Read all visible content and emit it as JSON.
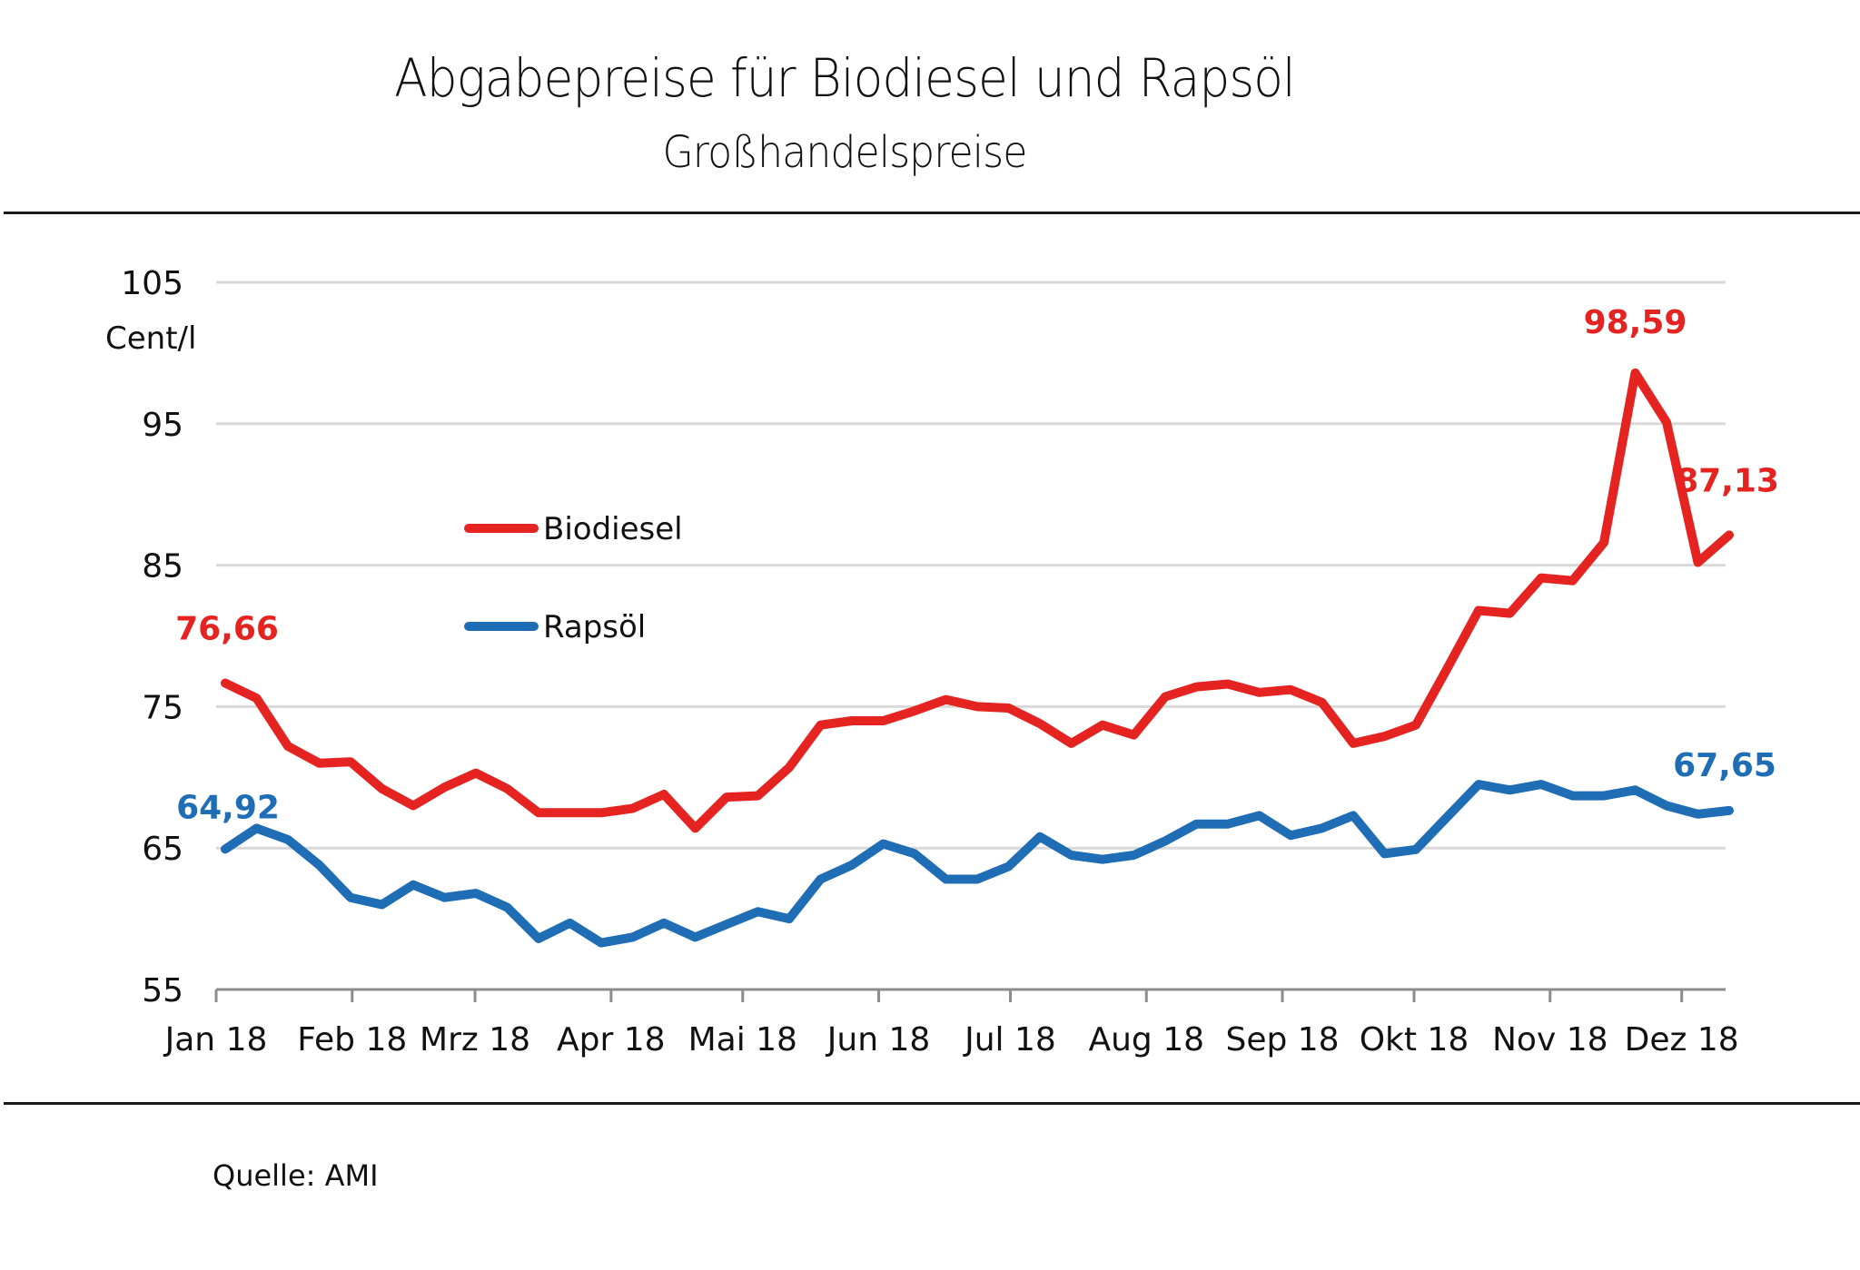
{
  "header": {
    "title": "Abgabepreise für Biodiesel und Rapsöl",
    "subtitle": "Großhandelspreise"
  },
  "footer": {
    "source": "Quelle: AMI"
  },
  "chart_data": {
    "type": "line",
    "title": "Abgabepreise für Biodiesel und Rapsöl",
    "subtitle": "Großhandelspreise",
    "xlabel": "",
    "ylabel": "Cent/l",
    "ylim": [
      55,
      105
    ],
    "yticks": [
      55,
      65,
      75,
      85,
      95,
      105
    ],
    "grid": true,
    "legend_position": "upper-left-center",
    "x_tick_labels": [
      "Jan 18",
      "Feb 18",
      "Mrz 18",
      "Apr 18",
      "Mai 18",
      "Jun 18",
      "Jul 18",
      "Aug 18",
      "Sep 18",
      "Okt 18",
      "Nov 18",
      "Dez 18"
    ],
    "x_unit": "weekly observations, 2018 (week 1 to week 49)",
    "series": [
      {
        "name": "Biodiesel",
        "color": "#E52421",
        "values": [
          76.66,
          75.6,
          72.2,
          71.0,
          71.1,
          69.2,
          68.0,
          69.3,
          70.3,
          69.2,
          67.5,
          67.5,
          67.5,
          67.8,
          68.8,
          66.4,
          68.6,
          68.7,
          70.7,
          73.7,
          74.0,
          74.0,
          74.7,
          75.5,
          75.0,
          74.9,
          73.8,
          72.4,
          73.7,
          73.0,
          75.7,
          76.4,
          76.6,
          76.0,
          76.2,
          75.3,
          72.4,
          72.9,
          73.7,
          77.7,
          81.8,
          81.6,
          84.1,
          83.9,
          86.6,
          98.59,
          95.1,
          85.2,
          87.13
        ],
        "annotations": [
          {
            "index": 0,
            "text": "76,66"
          },
          {
            "index": 45,
            "text": "98,59"
          },
          {
            "index": 48,
            "text": "87,13"
          }
        ]
      },
      {
        "name": "Rapsöl",
        "color": "#1F6DB5",
        "values": [
          64.92,
          66.4,
          65.6,
          63.8,
          61.5,
          61.0,
          62.4,
          61.5,
          61.8,
          60.8,
          58.6,
          59.7,
          58.3,
          58.7,
          59.7,
          58.7,
          59.6,
          60.5,
          60.0,
          62.8,
          63.8,
          65.3,
          64.6,
          62.8,
          62.8,
          63.7,
          65.8,
          64.5,
          64.2,
          64.5,
          65.5,
          66.7,
          66.7,
          67.3,
          65.9,
          66.4,
          67.3,
          64.6,
          64.9,
          67.2,
          69.5,
          69.1,
          69.5,
          68.7,
          68.7,
          69.1,
          68.0,
          67.4,
          67.65
        ],
        "annotations": [
          {
            "index": 0,
            "text": "64,92"
          },
          {
            "index": 48,
            "text": "67,65"
          }
        ]
      }
    ]
  }
}
